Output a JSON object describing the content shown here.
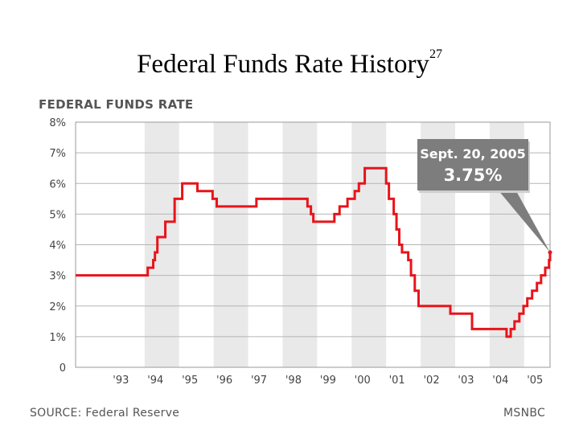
{
  "slide": {
    "title": "Federal Funds Rate History",
    "footnote": "27"
  },
  "chart_data": {
    "type": "line",
    "title": "FEDERAL FUNDS RATE",
    "xlabel": "",
    "ylabel": "",
    "ylim": [
      0,
      8
    ],
    "xlim": [
      1992.0,
      2005.75
    ],
    "y_tick_labels": [
      "0",
      "1%",
      "2%",
      "3%",
      "4%",
      "5%",
      "6%",
      "7%",
      "8%"
    ],
    "x_tick_labels": [
      "'93",
      "'94",
      "'95",
      "'96",
      "'97",
      "'98",
      "'99",
      "'00",
      "'01",
      "'02",
      "'03",
      "'04",
      "'05"
    ],
    "grid": true,
    "series": [
      {
        "name": "Federal funds rate",
        "color": "#e8141b",
        "x": [
          1992.0,
          1994.09,
          1994.25,
          1994.3,
          1994.37,
          1994.6,
          1994.87,
          1995.09,
          1995.53,
          1995.97,
          1996.09,
          1997.24,
          1998.72,
          1998.82,
          1998.89,
          1999.5,
          1999.65,
          1999.88,
          2000.09,
          2000.21,
          2000.38,
          2001.0,
          2001.08,
          2001.22,
          2001.3,
          2001.38,
          2001.46,
          2001.64,
          2001.72,
          2001.83,
          2001.94,
          2002.86,
          2003.49,
          2004.49,
          2004.61,
          2004.72,
          2004.86,
          2004.98,
          2005.09,
          2005.23,
          2005.37,
          2005.49,
          2005.61,
          2005.72,
          2005.75
        ],
        "y": [
          3.0,
          3.25,
          3.5,
          3.75,
          4.25,
          4.75,
          5.5,
          6.0,
          5.75,
          5.5,
          5.25,
          5.5,
          5.25,
          5.0,
          4.75,
          5.0,
          5.25,
          5.5,
          5.75,
          6.0,
          6.5,
          6.0,
          5.5,
          5.0,
          4.5,
          4.0,
          3.75,
          3.5,
          3.0,
          2.5,
          2.0,
          1.75,
          1.25,
          1.0,
          1.25,
          1.5,
          1.75,
          2.0,
          2.25,
          2.5,
          2.75,
          3.0,
          3.25,
          3.5,
          3.75
        ]
      }
    ],
    "annotation": {
      "date": "Sept. 20, 2005",
      "value": "3.75%",
      "point": [
        2005.75,
        3.75
      ]
    },
    "recession_shading": false,
    "shaded_years": [
      "'94",
      "'96",
      "'98",
      "'00",
      "'02",
      "'04"
    ],
    "source": "SOURCE: Federal Reserve",
    "credit": "MSNBC"
  }
}
